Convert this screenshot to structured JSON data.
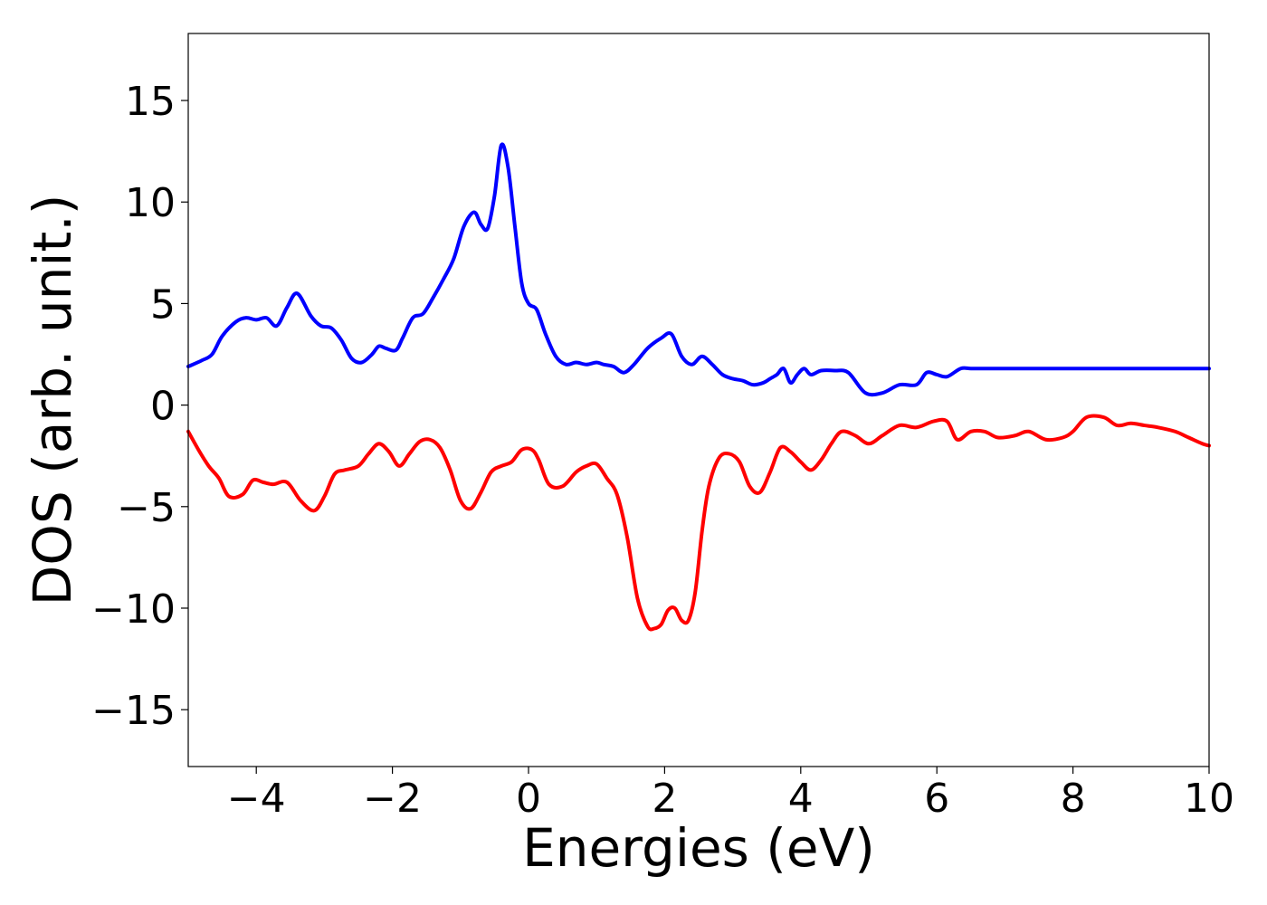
{
  "chart_data": {
    "type": "line",
    "title": "",
    "xlabel": "Energies (eV)",
    "ylabel": "DOS (arb. unit.)",
    "xlim": [
      -5,
      10
    ],
    "ylim": [
      -17.8,
      18.3
    ],
    "xticks": [
      -4,
      -2,
      0,
      2,
      4,
      6,
      8,
      10
    ],
    "yticks": [
      -15,
      -10,
      -5,
      0,
      5,
      10,
      15
    ],
    "xtick_labels": [
      "−4",
      "−2",
      "0",
      "2",
      "4",
      "6",
      "8",
      "10"
    ],
    "ytick_labels": [
      "−15",
      "−10",
      "−5",
      "0",
      "5",
      "10",
      "15"
    ],
    "grid": false,
    "legend": "none",
    "series": [
      {
        "color": "#0000ff",
        "x": [
          -5.0,
          -4.8,
          -4.65,
          -4.5,
          -4.3,
          -4.15,
          -4.0,
          -3.85,
          -3.7,
          -3.55,
          -3.4,
          -3.2,
          -3.05,
          -2.9,
          -2.75,
          -2.6,
          -2.45,
          -2.3,
          -2.2,
          -2.1,
          -1.95,
          -1.85,
          -1.7,
          -1.55,
          -1.4,
          -1.25,
          -1.1,
          -0.95,
          -0.8,
          -0.7,
          -0.6,
          -0.5,
          -0.4,
          -0.3,
          -0.2,
          -0.1,
          0.0,
          0.12,
          0.25,
          0.4,
          0.55,
          0.7,
          0.85,
          1.0,
          1.1,
          1.25,
          1.4,
          1.55,
          1.75,
          1.95,
          2.1,
          2.25,
          2.4,
          2.55,
          2.7,
          2.85,
          3.0,
          3.15,
          3.3,
          3.45,
          3.55,
          3.65,
          3.75,
          3.85,
          3.95,
          4.05,
          4.15,
          4.3,
          4.5,
          4.7,
          4.95,
          5.2,
          5.45,
          5.7,
          5.85,
          6.0,
          6.15,
          6.35,
          6.5,
          6.7,
          6.9,
          7.1,
          7.35,
          7.55,
          7.7,
          7.9,
          8.2,
          8.45,
          8.65,
          8.85,
          9.05,
          9.3,
          9.55,
          9.75,
          9.95,
          10.0
        ],
        "y": [
          1.9,
          2.2,
          2.5,
          3.4,
          4.1,
          4.3,
          4.2,
          4.3,
          3.9,
          4.8,
          5.5,
          4.4,
          3.9,
          3.8,
          3.2,
          2.3,
          2.1,
          2.5,
          2.9,
          2.8,
          2.7,
          3.3,
          4.3,
          4.5,
          5.3,
          6.2,
          7.2,
          8.8,
          9.5,
          8.9,
          8.7,
          10.3,
          12.8,
          11.7,
          8.8,
          6.0,
          5.0,
          4.7,
          3.5,
          2.4,
          2.0,
          2.1,
          2.0,
          2.1,
          2.0,
          1.9,
          1.6,
          2.0,
          2.8,
          3.3,
          3.5,
          2.4,
          2.0,
          2.4,
          2.0,
          1.5,
          1.3,
          1.2,
          1.0,
          1.1,
          1.3,
          1.5,
          1.8,
          1.1,
          1.5,
          1.8,
          1.5,
          1.7,
          1.7,
          1.6,
          0.6,
          0.6,
          1.0,
          1.0,
          1.6,
          1.5,
          1.4,
          1.8,
          1.8,
          1.8,
          1.8,
          1.8,
          1.8,
          1.8,
          1.8,
          1.8,
          1.8,
          1.8,
          1.8,
          1.8,
          1.8,
          1.8,
          1.8,
          1.8,
          1.8,
          1.8
        ]
      },
      {
        "color": "#ff0000",
        "x": [
          -5.0,
          -4.85,
          -4.7,
          -4.55,
          -4.4,
          -4.2,
          -4.05,
          -3.9,
          -3.75,
          -3.55,
          -3.35,
          -3.15,
          -3.0,
          -2.85,
          -2.7,
          -2.5,
          -2.35,
          -2.2,
          -2.05,
          -1.9,
          -1.75,
          -1.6,
          -1.45,
          -1.3,
          -1.15,
          -1.0,
          -0.85,
          -0.7,
          -0.55,
          -0.4,
          -0.25,
          -0.1,
          0.05,
          0.15,
          0.3,
          0.5,
          0.7,
          0.85,
          1.0,
          1.15,
          1.3,
          1.45,
          1.6,
          1.75,
          1.85,
          1.95,
          2.05,
          2.15,
          2.25,
          2.35,
          2.45,
          2.55,
          2.65,
          2.8,
          2.95,
          3.1,
          3.25,
          3.4,
          3.55,
          3.7,
          3.85,
          4.0,
          4.15,
          4.3,
          4.45,
          4.6,
          4.8,
          5.0,
          5.2,
          5.45,
          5.7,
          5.95,
          6.15,
          6.3,
          6.5,
          6.7,
          6.9,
          7.15,
          7.35,
          7.6,
          7.85,
          8.0,
          8.2,
          8.45,
          8.65,
          8.85,
          9.05,
          9.25,
          9.5,
          9.7,
          9.9,
          10.0
        ],
        "y": [
          -1.3,
          -2.2,
          -3.0,
          -3.6,
          -4.5,
          -4.4,
          -3.7,
          -3.8,
          -3.9,
          -3.8,
          -4.7,
          -5.2,
          -4.5,
          -3.4,
          -3.2,
          -3.0,
          -2.4,
          -1.9,
          -2.3,
          -3.0,
          -2.4,
          -1.8,
          -1.7,
          -2.1,
          -3.2,
          -4.7,
          -5.1,
          -4.3,
          -3.3,
          -3.0,
          -2.8,
          -2.2,
          -2.2,
          -2.7,
          -3.9,
          -4.0,
          -3.3,
          -3.0,
          -2.9,
          -3.6,
          -4.4,
          -6.5,
          -9.5,
          -10.9,
          -11.0,
          -10.8,
          -10.1,
          -10.0,
          -10.6,
          -10.6,
          -9.2,
          -6.2,
          -4.0,
          -2.6,
          -2.4,
          -2.8,
          -4.0,
          -4.3,
          -3.3,
          -2.1,
          -2.3,
          -2.8,
          -3.2,
          -2.7,
          -1.9,
          -1.3,
          -1.5,
          -1.9,
          -1.5,
          -1.0,
          -1.1,
          -0.8,
          -0.8,
          -1.7,
          -1.3,
          -1.3,
          -1.6,
          -1.5,
          -1.3,
          -1.7,
          -1.6,
          -1.3,
          -0.6,
          -0.6,
          -1.0,
          -0.9,
          -1.0,
          -1.1,
          -1.3,
          -1.6,
          -1.9,
          -2.0
        ]
      }
    ]
  }
}
